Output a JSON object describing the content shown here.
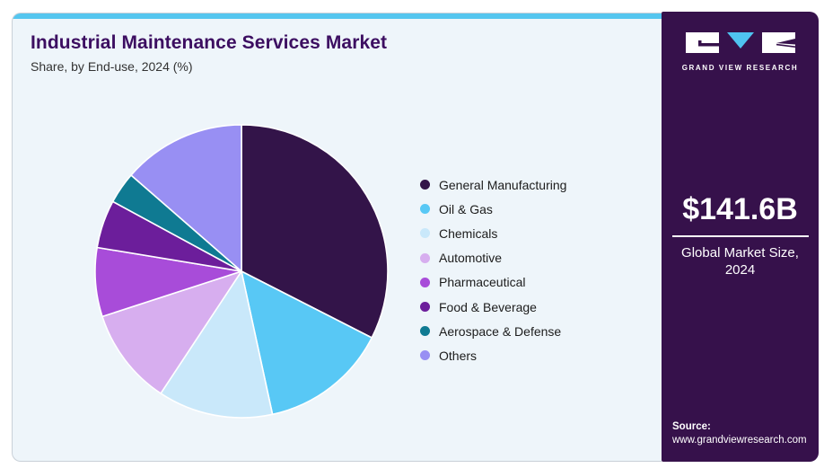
{
  "header": {
    "title": "Industrial Maintenance Services Market",
    "subtitle": "Share, by End-use, 2024 (%)"
  },
  "chart_data": {
    "type": "pie",
    "title": "Industrial Maintenance Services Market Share, by End-use, 2024 (%)",
    "unit": "%",
    "start_angle": "12-oclock, clockwise",
    "legend_position": "right",
    "data_labels_shown": false,
    "slices": [
      {
        "label": "General Manufacturing",
        "value": 32.5,
        "color": "#331449"
      },
      {
        "label": "Oil & Gas",
        "value": 14.1,
        "color": "#58c8f5"
      },
      {
        "label": "Chemicals",
        "value": 12.7,
        "color": "#c9e8fa"
      },
      {
        "label": "Automotive",
        "value": 10.7,
        "color": "#d7aeef"
      },
      {
        "label": "Pharmaceutical",
        "value": 7.6,
        "color": "#a84cd9"
      },
      {
        "label": "Food & Beverage",
        "value": 5.3,
        "color": "#6c1e9b"
      },
      {
        "label": "Aerospace & Defense",
        "value": 3.5,
        "color": "#0f7a92"
      },
      {
        "label": "Others",
        "value": 13.6,
        "color": "#988ff3"
      }
    ]
  },
  "sidebar": {
    "logo_icon": "gvr-logo-icon",
    "brand": "GRAND VIEW RESEARCH",
    "market_size_value": "$141.6B",
    "market_size_label": "Global Market Size, 2024",
    "source_label": "Source:",
    "source_url": "www.grandviewresearch.com"
  },
  "colors": {
    "accent_bar": "#55c6ef",
    "card_background": "#eef5fa",
    "sidebar_background": "#36114b",
    "title_text": "#3c0e61",
    "slice_border": "#ffffff"
  }
}
